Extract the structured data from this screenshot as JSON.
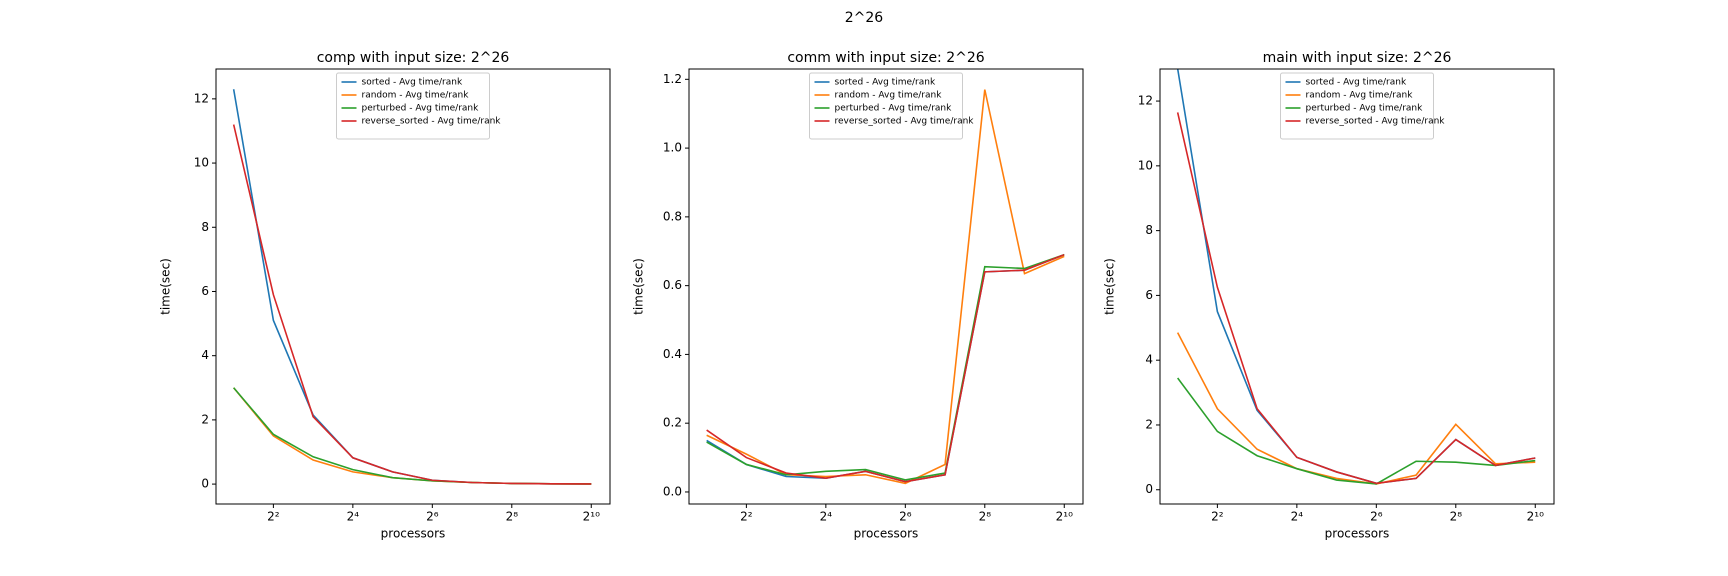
{
  "figure_title": "2^26",
  "chart_data": [
    {
      "type": "line",
      "title": "comp with input size: 2^26",
      "xlabel": "processors",
      "ylabel": "time(sec)",
      "x": [
        2,
        4,
        8,
        16,
        32,
        64,
        128,
        256,
        512,
        1024
      ],
      "xscale": "log2",
      "xlim": [
        1.47,
        1420
      ],
      "xticks": [
        {
          "value": 4,
          "label": "2²"
        },
        {
          "value": 16,
          "label": "2⁴"
        },
        {
          "value": 64,
          "label": "2⁶"
        },
        {
          "value": 256,
          "label": "2⁸"
        },
        {
          "value": 1024,
          "label": "2¹⁰"
        }
      ],
      "ylim": [
        -0.62,
        12.93
      ],
      "yticks": [
        0,
        2,
        4,
        6,
        8,
        10,
        12
      ],
      "legend": "upper center",
      "series": [
        {
          "name": "sorted - Avg time/rank",
          "color": "#1f77b4",
          "values": [
            12.3,
            5.1,
            2.15,
            0.82,
            0.38,
            0.12,
            0.05,
            0.02,
            0.01,
            0.005
          ]
        },
        {
          "name": "random - Avg time/rank",
          "color": "#ff7f0e",
          "values": [
            3.0,
            1.5,
            0.75,
            0.38,
            0.2,
            0.1,
            0.05,
            0.02,
            0.01,
            0.005
          ]
        },
        {
          "name": "perturbed - Avg time/rank",
          "color": "#2ca02c",
          "values": [
            3.0,
            1.55,
            0.85,
            0.45,
            0.2,
            0.1,
            0.05,
            0.02,
            0.01,
            0.005
          ]
        },
        {
          "name": "reverse_sorted - Avg time/rank",
          "color": "#d62728",
          "values": [
            11.2,
            5.9,
            2.1,
            0.82,
            0.38,
            0.12,
            0.05,
            0.02,
            0.01,
            0.005
          ]
        }
      ]
    },
    {
      "type": "line",
      "title": "comm with input size: 2^26",
      "xlabel": "processors",
      "ylabel": "time(sec)",
      "x": [
        2,
        4,
        8,
        16,
        32,
        64,
        128,
        256,
        512,
        1024
      ],
      "xscale": "log2",
      "xlim": [
        1.47,
        1420
      ],
      "xticks": [
        {
          "value": 4,
          "label": "2²"
        },
        {
          "value": 16,
          "label": "2⁴"
        },
        {
          "value": 64,
          "label": "2⁶"
        },
        {
          "value": 256,
          "label": "2⁸"
        },
        {
          "value": 1024,
          "label": "2¹⁰"
        }
      ],
      "ylim": [
        -0.035,
        1.23
      ],
      "yticks": [
        {
          "value": 0,
          "label": "0.0"
        },
        0.2,
        0.4,
        0.6,
        0.8,
        {
          "value": 1,
          "label": "1.0"
        },
        1.2
      ],
      "legend": "upper center",
      "series": [
        {
          "name": "sorted - Avg time/rank",
          "color": "#1f77b4",
          "values": [
            0.15,
            0.08,
            0.045,
            0.04,
            0.06,
            0.03,
            0.05,
            0.64,
            0.645,
            0.69
          ]
        },
        {
          "name": "random - Avg time/rank",
          "color": "#ff7f0e",
          "values": [
            0.165,
            0.11,
            0.05,
            0.045,
            0.05,
            0.025,
            0.08,
            1.17,
            0.635,
            0.685
          ]
        },
        {
          "name": "perturbed - Avg time/rank",
          "color": "#2ca02c",
          "values": [
            0.145,
            0.08,
            0.05,
            0.06,
            0.065,
            0.035,
            0.055,
            0.655,
            0.65,
            0.69
          ]
        },
        {
          "name": "reverse_sorted - Avg time/rank",
          "color": "#d62728",
          "values": [
            0.18,
            0.1,
            0.055,
            0.04,
            0.06,
            0.03,
            0.05,
            0.64,
            0.645,
            0.69
          ]
        }
      ]
    },
    {
      "type": "line",
      "title": "main with input size: 2^26",
      "xlabel": "processors",
      "ylabel": "time(sec)",
      "x": [
        2,
        4,
        8,
        16,
        32,
        64,
        128,
        256,
        512,
        1024
      ],
      "xscale": "log2",
      "xlim": [
        1.47,
        1420
      ],
      "xticks": [
        {
          "value": 4,
          "label": "2²"
        },
        {
          "value": 16,
          "label": "2⁴"
        },
        {
          "value": 64,
          "label": "2⁶"
        },
        {
          "value": 256,
          "label": "2⁸"
        },
        {
          "value": 1024,
          "label": "2¹⁰"
        }
      ],
      "ylim": [
        -0.44,
        12.99
      ],
      "yticks": [
        0,
        2,
        4,
        6,
        8,
        10,
        12
      ],
      "legend": "upper center",
      "series": [
        {
          "name": "sorted - Avg time/rank",
          "color": "#1f77b4",
          "values": [
            13.0,
            5.5,
            2.45,
            1.0,
            0.55,
            0.2,
            0.35,
            1.55,
            0.75,
            0.98
          ]
        },
        {
          "name": "random - Avg time/rank",
          "color": "#ff7f0e",
          "values": [
            4.85,
            2.5,
            1.25,
            0.65,
            0.35,
            0.18,
            0.45,
            2.02,
            0.8,
            0.85
          ]
        },
        {
          "name": "perturbed - Avg time/rank",
          "color": "#2ca02c",
          "values": [
            3.45,
            1.8,
            1.05,
            0.65,
            0.3,
            0.18,
            0.88,
            0.85,
            0.75,
            0.9
          ]
        },
        {
          "name": "reverse_sorted - Avg time/rank",
          "color": "#d62728",
          "values": [
            11.65,
            6.25,
            2.5,
            1.0,
            0.55,
            0.2,
            0.35,
            1.55,
            0.75,
            0.98
          ]
        }
      ]
    }
  ]
}
